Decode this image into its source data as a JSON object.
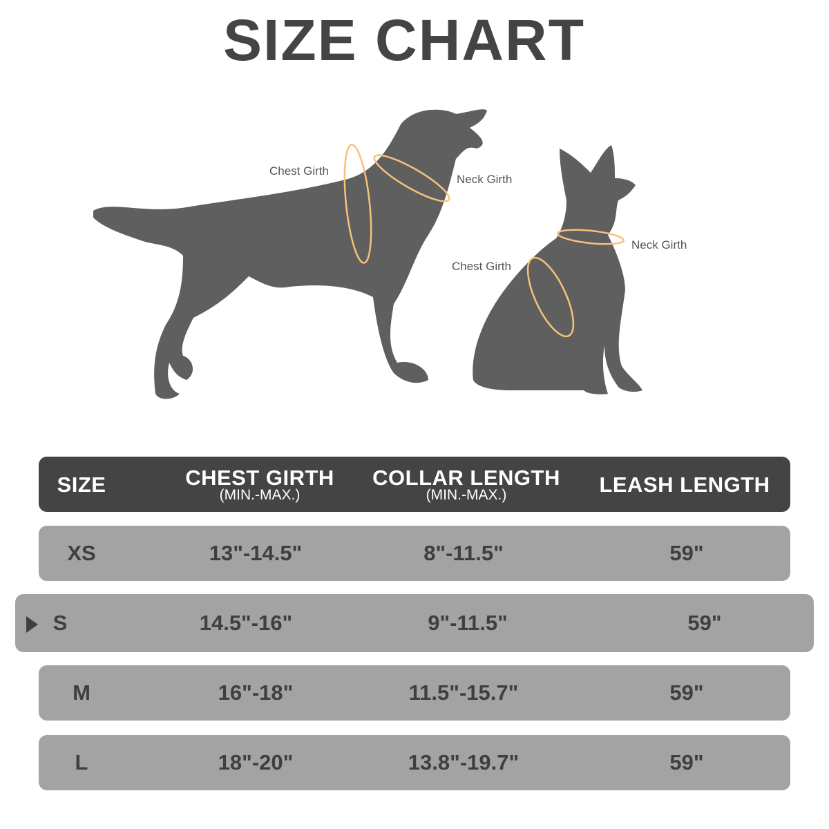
{
  "title": "SIZE CHART",
  "illustration": {
    "large_dog": {
      "chest_label": "Chest Girth",
      "neck_label": "Neck Girth"
    },
    "small_dog": {
      "chest_label": "Chest Girth",
      "neck_label": "Neck Girth"
    },
    "silhouette_color": "#5f5f5f",
    "measure_color": "#f5c27a"
  },
  "table": {
    "headers": [
      {
        "main": "SIZE",
        "sub": ""
      },
      {
        "main": "CHEST GIRTH",
        "sub": "(MIN.-MAX.)"
      },
      {
        "main": "COLLAR LENGTH",
        "sub": "(MIN.-MAX.)"
      },
      {
        "main": "LEASH LENGTH",
        "sub": ""
      }
    ],
    "rows": [
      {
        "size": "XS",
        "chest": "13\"-14.5\"",
        "collar": "8\"-11.5\"",
        "leash": "59\"",
        "selected": false
      },
      {
        "size": "S",
        "chest": "14.5\"-16\"",
        "collar": "9\"-11.5\"",
        "leash": "59\"",
        "selected": true
      },
      {
        "size": "M",
        "chest": "16\"-18\"",
        "collar": "11.5\"-15.7\"",
        "leash": "59\"",
        "selected": false
      },
      {
        "size": "L",
        "chest": "18\"-20\"",
        "collar": "13.8\"-19.7\"",
        "leash": "59\"",
        "selected": false
      }
    ],
    "header_color": "#444444",
    "row_color": "#a3a3a3"
  }
}
